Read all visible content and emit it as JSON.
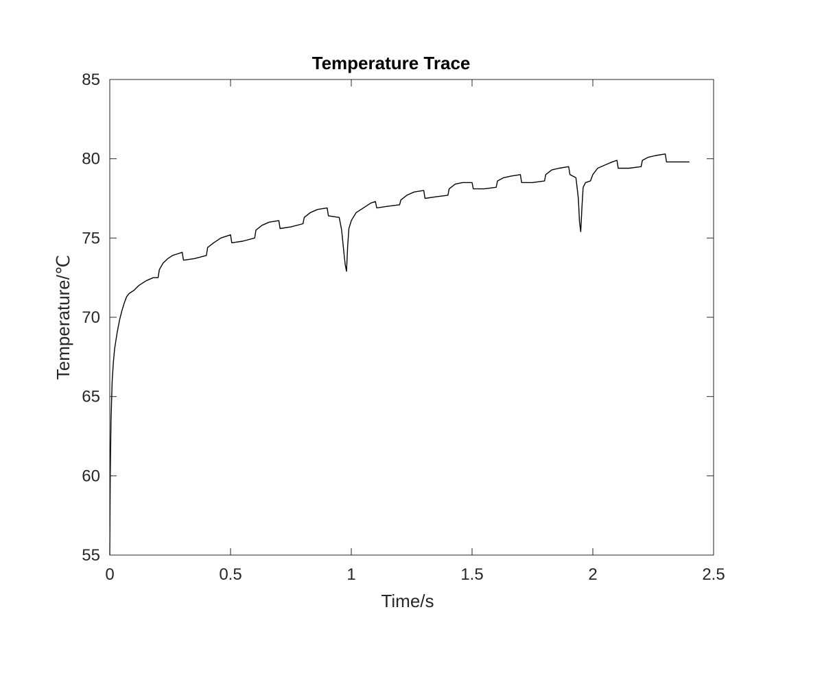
{
  "chart_data": {
    "type": "line",
    "title": "Temperature Trace",
    "xlabel": "Time/s",
    "ylabel": "Temperature/℃",
    "xlim": [
      0,
      2.5
    ],
    "ylim": [
      55,
      85
    ],
    "xticks": [
      0,
      0.5,
      1,
      1.5,
      2,
      2.5
    ],
    "xtick_labels": [
      "0",
      "0.5",
      "1",
      "1.5",
      "2",
      "2.5"
    ],
    "yticks": [
      55,
      60,
      65,
      70,
      75,
      80,
      85
    ],
    "ytick_labels": [
      "55",
      "60",
      "65",
      "70",
      "75",
      "80",
      "85"
    ],
    "grid": false,
    "box": true,
    "line_color": "#000000",
    "axis_color": "#262626",
    "series": [
      {
        "x": [
          0,
          0.002,
          0.005,
          0.01,
          0.015,
          0.02,
          0.03,
          0.04,
          0.05,
          0.06,
          0.07,
          0.08,
          0.09,
          0.1,
          0.12,
          0.15,
          0.18,
          0.2,
          0.205,
          0.22,
          0.24,
          0.26,
          0.28,
          0.3,
          0.305,
          0.35,
          0.4,
          0.405,
          0.43,
          0.46,
          0.5,
          0.505,
          0.55,
          0.6,
          0.605,
          0.63,
          0.66,
          0.7,
          0.705,
          0.75,
          0.8,
          0.805,
          0.83,
          0.86,
          0.9,
          0.905,
          0.95,
          0.96,
          0.97,
          0.975,
          0.98,
          0.985,
          0.99,
          1.0,
          1.02,
          1.05,
          1.08,
          1.1,
          1.105,
          1.15,
          1.2,
          1.205,
          1.23,
          1.26,
          1.3,
          1.305,
          1.35,
          1.4,
          1.405,
          1.43,
          1.46,
          1.5,
          1.505,
          1.55,
          1.6,
          1.605,
          1.63,
          1.66,
          1.7,
          1.705,
          1.75,
          1.8,
          1.805,
          1.83,
          1.86,
          1.9,
          1.905,
          1.93,
          1.94,
          1.945,
          1.95,
          1.955,
          1.96,
          1.97,
          1.99,
          2.0,
          2.02,
          2.05,
          2.08,
          2.1,
          2.105,
          2.15,
          2.2,
          2.205,
          2.23,
          2.26,
          2.3,
          2.305,
          2.35,
          2.4
        ],
        "y": [
          55.0,
          60.0,
          63.5,
          66.0,
          67.2,
          68.0,
          69.0,
          69.8,
          70.4,
          70.9,
          71.3,
          71.5,
          71.6,
          71.7,
          72.0,
          72.3,
          72.5,
          72.5,
          73.0,
          73.4,
          73.7,
          73.9,
          74.0,
          74.1,
          73.6,
          73.7,
          73.9,
          74.4,
          74.7,
          75.0,
          75.2,
          74.7,
          74.8,
          75.0,
          75.5,
          75.8,
          76.0,
          76.1,
          75.6,
          75.7,
          75.9,
          76.3,
          76.6,
          76.8,
          76.9,
          76.4,
          76.3,
          75.5,
          74.0,
          73.3,
          72.9,
          74.5,
          75.6,
          76.1,
          76.6,
          76.9,
          77.2,
          77.3,
          76.9,
          77.0,
          77.1,
          77.4,
          77.7,
          77.9,
          78.0,
          77.5,
          77.6,
          77.7,
          78.1,
          78.4,
          78.5,
          78.5,
          78.1,
          78.1,
          78.2,
          78.6,
          78.8,
          78.9,
          79.0,
          78.5,
          78.5,
          78.6,
          79.0,
          79.3,
          79.4,
          79.5,
          79.0,
          78.8,
          77.5,
          76.0,
          75.4,
          77.0,
          78.2,
          78.5,
          78.6,
          79.0,
          79.4,
          79.6,
          79.8,
          79.9,
          79.4,
          79.4,
          79.5,
          79.9,
          80.1,
          80.2,
          80.3,
          79.8,
          79.8,
          79.8
        ]
      }
    ]
  }
}
